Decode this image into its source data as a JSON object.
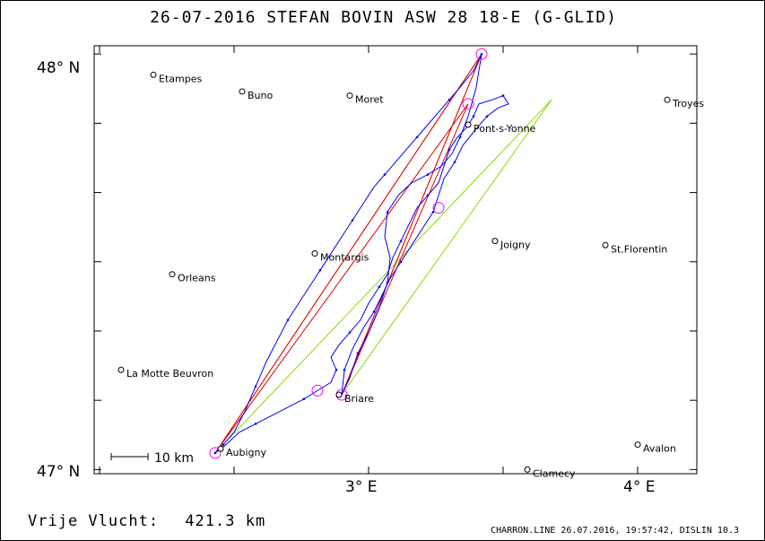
{
  "title": "26-07-2016   STEFAN BOVIN   ASW 28 18-E (G-GLID)",
  "footer": {
    "distance_label": "Vrije Vlucht:",
    "distance_value": "421.3 km",
    "software": "CHARRON.LINE 26.07.2016, 19:57:42, DISLIN 10.3"
  },
  "axes": {
    "lat_labels": [
      "48° N",
      "47° N"
    ],
    "lon_labels": [
      "3° E",
      "4° E"
    ],
    "lon_range": [
      1.98,
      4.22
    ],
    "lat_range": [
      46.99,
      48.02
    ]
  },
  "scale_bar": {
    "label": "10 km"
  },
  "colors": {
    "track": "#0000ff",
    "turnpoint": "#ff00ff",
    "task_line_red": "#e00000",
    "task_line_orange": "#cc7700",
    "sector_green": "#88dd00"
  },
  "places": [
    {
      "name": "Etampes",
      "lon": 2.2,
      "lat": 47.95
    },
    {
      "name": "Buno",
      "lon": 2.53,
      "lat": 47.91
    },
    {
      "name": "Moret",
      "lon": 2.93,
      "lat": 47.9
    },
    {
      "name": "Troyes",
      "lon": 4.11,
      "lat": 47.89
    },
    {
      "name": "Pont-s-Yonne",
      "lon": 3.37,
      "lat": 47.83
    },
    {
      "name": "Montargis",
      "lon": 2.8,
      "lat": 47.52
    },
    {
      "name": "Joigny",
      "lon": 3.47,
      "lat": 47.55
    },
    {
      "name": "St.Florentin",
      "lon": 3.88,
      "lat": 47.54
    },
    {
      "name": "Orleans",
      "lon": 2.27,
      "lat": 47.47
    },
    {
      "name": "La Motte Beuvron",
      "lon": 2.08,
      "lat": 47.24
    },
    {
      "name": "Briare",
      "lon": 2.89,
      "lat": 47.18
    },
    {
      "name": "Aubigny",
      "lon": 2.45,
      "lat": 47.05
    },
    {
      "name": "Avalon",
      "lon": 4.0,
      "lat": 47.06
    },
    {
      "name": "Clamecy",
      "lon": 3.59,
      "lat": 47.0
    }
  ],
  "turnpoints": [
    {
      "lon": 2.43,
      "lat": 47.04
    },
    {
      "lon": 3.42,
      "lat": 48.0
    },
    {
      "lon": 2.9,
      "lat": 47.18
    },
    {
      "lon": 2.81,
      "lat": 47.19
    },
    {
      "lon": 3.26,
      "lat": 47.63
    },
    {
      "lon": 3.37,
      "lat": 47.88
    }
  ],
  "task_lines": [
    {
      "color": "orange",
      "points": [
        [
          2.43,
          47.04
        ],
        [
          3.42,
          48.0
        ],
        [
          2.9,
          47.18
        ],
        [
          3.42,
          48.0
        ]
      ]
    },
    {
      "color": "red",
      "points": [
        [
          2.43,
          47.04
        ],
        [
          3.42,
          48.0
        ],
        [
          2.9,
          47.18
        ],
        [
          3.37,
          47.88
        ],
        [
          2.43,
          47.04
        ]
      ]
    }
  ],
  "sector_lines": [
    [
      [
        2.43,
        47.04
      ],
      [
        3.68,
        47.89
      ]
    ],
    [
      [
        2.9,
        47.18
      ],
      [
        3.68,
        47.89
      ]
    ]
  ],
  "track": [
    [
      2.43,
      47.04
    ],
    [
      2.47,
      47.06
    ],
    [
      2.52,
      47.09
    ],
    [
      2.58,
      47.11
    ],
    [
      2.64,
      47.13
    ],
    [
      2.7,
      47.15
    ],
    [
      2.76,
      47.17
    ],
    [
      2.81,
      47.19
    ],
    [
      2.86,
      47.21
    ],
    [
      2.88,
      47.24
    ],
    [
      2.86,
      47.27
    ],
    [
      2.89,
      47.3
    ],
    [
      2.93,
      47.33
    ],
    [
      2.97,
      47.36
    ],
    [
      3.0,
      47.4
    ],
    [
      3.04,
      47.44
    ],
    [
      3.07,
      47.47
    ],
    [
      3.09,
      47.51
    ],
    [
      3.12,
      47.55
    ],
    [
      3.15,
      47.59
    ],
    [
      3.18,
      47.63
    ],
    [
      3.22,
      47.66
    ],
    [
      3.26,
      47.69
    ],
    [
      3.28,
      47.73
    ],
    [
      3.3,
      47.77
    ],
    [
      3.33,
      47.8
    ],
    [
      3.36,
      47.82
    ],
    [
      3.39,
      47.85
    ],
    [
      3.41,
      47.88
    ],
    [
      3.46,
      47.89
    ],
    [
      3.5,
      47.9
    ],
    [
      3.52,
      47.88
    ],
    [
      3.48,
      47.87
    ],
    [
      3.44,
      47.85
    ],
    [
      3.4,
      47.82
    ],
    [
      3.35,
      47.78
    ],
    [
      3.32,
      47.74
    ],
    [
      3.28,
      47.7
    ],
    [
      3.26,
      47.66
    ],
    [
      3.24,
      47.62
    ],
    [
      3.2,
      47.58
    ],
    [
      3.16,
      47.54
    ],
    [
      3.12,
      47.5
    ],
    [
      3.08,
      47.46
    ],
    [
      3.05,
      47.42
    ],
    [
      3.02,
      47.38
    ],
    [
      2.98,
      47.34
    ],
    [
      2.94,
      47.29
    ],
    [
      2.91,
      47.24
    ],
    [
      2.9,
      47.18
    ],
    [
      2.93,
      47.22
    ],
    [
      2.96,
      47.28
    ],
    [
      3.0,
      47.33
    ],
    [
      3.04,
      47.39
    ],
    [
      3.07,
      47.45
    ],
    [
      3.08,
      47.51
    ],
    [
      3.06,
      47.56
    ],
    [
      3.07,
      47.62
    ],
    [
      3.11,
      47.66
    ],
    [
      3.16,
      47.69
    ],
    [
      3.22,
      47.71
    ],
    [
      3.27,
      47.73
    ],
    [
      3.31,
      47.76
    ],
    [
      3.34,
      47.8
    ],
    [
      3.37,
      47.85
    ],
    [
      3.4,
      47.92
    ],
    [
      3.42,
      48.0
    ],
    [
      3.39,
      47.96
    ],
    [
      3.34,
      47.92
    ],
    [
      3.3,
      47.89
    ],
    [
      3.26,
      47.86
    ],
    [
      3.22,
      47.83
    ],
    [
      3.18,
      47.8
    ],
    [
      3.14,
      47.77
    ],
    [
      3.1,
      47.74
    ],
    [
      3.06,
      47.71
    ],
    [
      3.02,
      47.68
    ],
    [
      2.98,
      47.64
    ],
    [
      2.94,
      47.6
    ],
    [
      2.9,
      47.56
    ],
    [
      2.86,
      47.52
    ],
    [
      2.82,
      47.48
    ],
    [
      2.78,
      47.44
    ],
    [
      2.74,
      47.4
    ],
    [
      2.7,
      47.36
    ],
    [
      2.66,
      47.31
    ],
    [
      2.62,
      47.26
    ],
    [
      2.58,
      47.2
    ],
    [
      2.54,
      47.14
    ],
    [
      2.5,
      47.09
    ],
    [
      2.46,
      47.06
    ],
    [
      2.43,
      47.04
    ]
  ]
}
